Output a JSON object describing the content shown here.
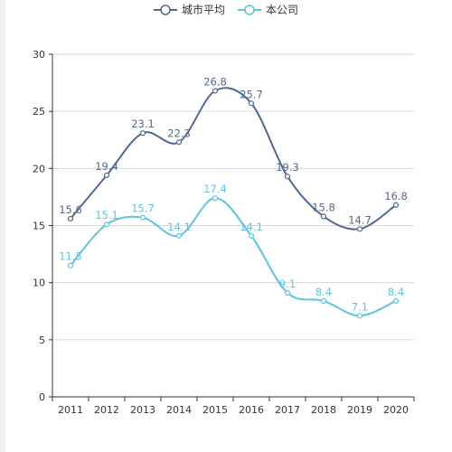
{
  "chart_data": {
    "type": "line",
    "categories": [
      "2011",
      "2012",
      "2013",
      "2014",
      "2015",
      "2016",
      "2017",
      "2018",
      "2019",
      "2020"
    ],
    "series": [
      {
        "name": "城市平均",
        "values": [
          15.6,
          19.4,
          23.1,
          22.3,
          26.8,
          25.7,
          19.3,
          15.8,
          14.7,
          16.8
        ],
        "color": "#4f6a8f"
      },
      {
        "name": "本公司",
        "values": [
          11.5,
          15.1,
          15.7,
          14.1,
          17.4,
          14.1,
          9.1,
          8.4,
          7.1,
          8.4
        ],
        "color": "#5cc4e0"
      }
    ],
    "y_ticks": [
      "0",
      "5",
      "10",
      "15",
      "20",
      "25",
      "30"
    ],
    "ylim": [
      0,
      30
    ],
    "grid": true,
    "legend_position": "top-center",
    "smooth": true
  }
}
